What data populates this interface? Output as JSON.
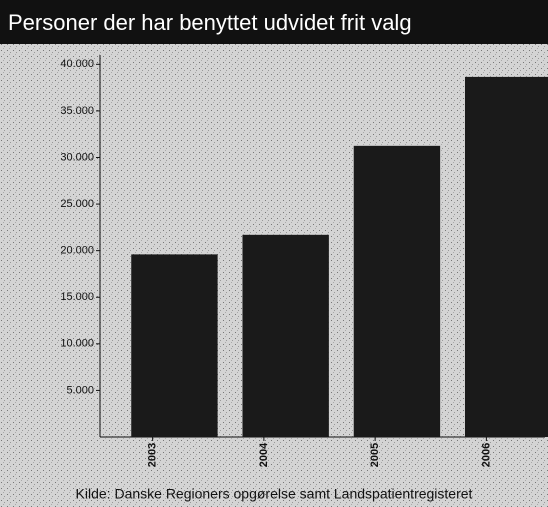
{
  "chart_data": {
    "type": "bar",
    "title": "Personer der har benyttet udvidet frit valg",
    "categories": [
      "2003",
      "2004",
      "2005",
      "2006"
    ],
    "values": [
      19600,
      21700,
      31250,
      38650
    ],
    "color": "#1a1a1a",
    "ylim": [
      0,
      41000
    ],
    "yticks": [
      {
        "value": 5000,
        "label": "5.000"
      },
      {
        "value": 10000,
        "label": "10.000"
      },
      {
        "value": 15000,
        "label": "15.000"
      },
      {
        "value": 20000,
        "label": "20.000"
      },
      {
        "value": 25000,
        "label": "25.000"
      },
      {
        "value": 30000,
        "label": "30.000"
      },
      {
        "value": 35000,
        "label": "35.000"
      },
      {
        "value": 40000,
        "label": "40.000"
      }
    ],
    "grid": false,
    "source": "Kilde: Danske Regioners opgørelse samt Landspatientregisteret"
  }
}
